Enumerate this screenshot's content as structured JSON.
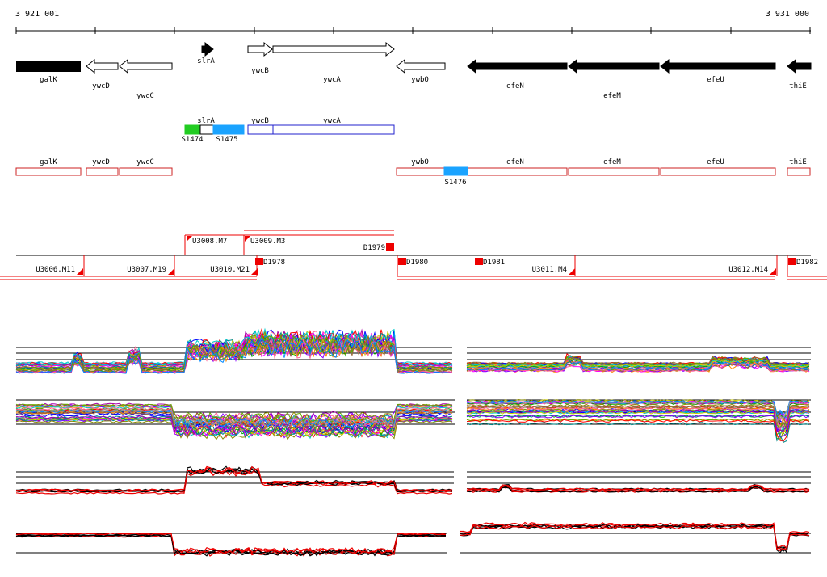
{
  "coordinates": {
    "start": "3 921 001",
    "end": "3 931 000"
  },
  "genome_track": {
    "genes": [
      {
        "name": "galK",
        "strand": "plus",
        "filled": true
      },
      {
        "name": "ywcD",
        "strand": "minus",
        "filled": false
      },
      {
        "name": "ywcC",
        "strand": "minus",
        "filled": false
      },
      {
        "name": "slrA",
        "strand": "plus",
        "filled": true
      },
      {
        "name": "ywcB",
        "strand": "plus",
        "filled": false
      },
      {
        "name": "ywcA",
        "strand": "plus",
        "filled": false
      },
      {
        "name": "ywbO",
        "strand": "minus",
        "filled": false
      },
      {
        "name": "efeN",
        "strand": "minus",
        "filled": true
      },
      {
        "name": "efeM",
        "strand": "minus",
        "filled": true
      },
      {
        "name": "efeU",
        "strand": "minus",
        "filled": true
      },
      {
        "name": "thiE",
        "strand": "minus",
        "filled": true
      }
    ]
  },
  "plus_strand_transcripts": {
    "segments": [
      {
        "label": "",
        "color": "#22cc22"
      },
      {
        "label": "slrA",
        "color": "#ffffff"
      },
      {
        "label": "",
        "color": "#1aa3ff"
      },
      {
        "label": "ywcB",
        "color": "#ffffff"
      },
      {
        "label": "ywcA",
        "color": "#ffffff"
      }
    ],
    "regulators": [
      "S1474",
      "S1475"
    ],
    "outline_color": "#2020cc"
  },
  "minus_strand_transcripts": {
    "segments": [
      {
        "label": "galK"
      },
      {
        "label": "ywcD"
      },
      {
        "label": "ywcC"
      },
      {
        "label": "ywbO"
      },
      {
        "label": "efeN"
      },
      {
        "label": "efeM"
      },
      {
        "label": "efeU"
      },
      {
        "label": "thiE"
      }
    ],
    "regulators": [
      "S1476"
    ],
    "outline_color": "#cc2020",
    "highlight_color": "#1aa3ff"
  },
  "upshifts_downshifts": {
    "upper_labels": [
      "U3008.M7",
      "U3009.M3",
      "D1979"
    ],
    "lower_labels": [
      "U3006.M11",
      "U3007.M19",
      "U3010.M21",
      "D1978",
      "D1980",
      "D1981",
      "U3011.M4",
      "U3012.M14",
      "D1982"
    ],
    "marker_color": "#ee0000"
  },
  "expression_panels": {
    "series_colors": [
      "#ff0000",
      "#00aa00",
      "#0000ff",
      "#ff00ff",
      "#00cccc",
      "#cccc00",
      "#ff8800",
      "#8800ff",
      "#008888",
      "#888800",
      "#ff6699",
      "#66aa00",
      "#996633",
      "#0088ff",
      "#aa00aa",
      "#999999"
    ],
    "summary_colors": [
      "#000000",
      "#ee0000"
    ]
  }
}
